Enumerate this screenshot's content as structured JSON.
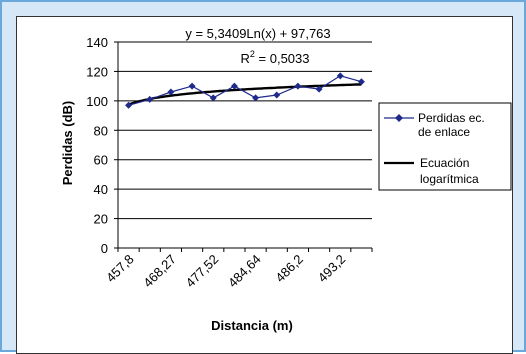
{
  "chart_data": {
    "type": "line",
    "xlabel": "Distancia (m)",
    "ylabel": "Perdidas (dB)",
    "ylim": [
      0,
      140
    ],
    "yticks": [
      0,
      20,
      40,
      60,
      80,
      100,
      120,
      140
    ],
    "x_tick_labels": [
      "457,8",
      "468,27",
      "477,52",
      "484,64",
      "486,2",
      "493,2"
    ],
    "grid": "horizontal",
    "legend_position": "right",
    "equation": {
      "line1": "y = 5,3409Ln(x) + 97,763",
      "r2_prefix": "R",
      "r2_sup": "2",
      "r2_suffix": " = 0,5033"
    },
    "series": [
      {
        "name": "Perdidas ec. de enlace",
        "legend_line1": "Perdidas ec.",
        "legend_line2": "de enlace",
        "color": "#1f2a8c",
        "marker": "diamond",
        "values": [
          97,
          101,
          106,
          110,
          102,
          110,
          102,
          104,
          110,
          108,
          117,
          113
        ]
      },
      {
        "name": "Ecuación logarítmica",
        "legend_line1": "Ecuación",
        "legend_line2": "logarítmica",
        "color": "#000000",
        "type": "trendline"
      }
    ]
  }
}
